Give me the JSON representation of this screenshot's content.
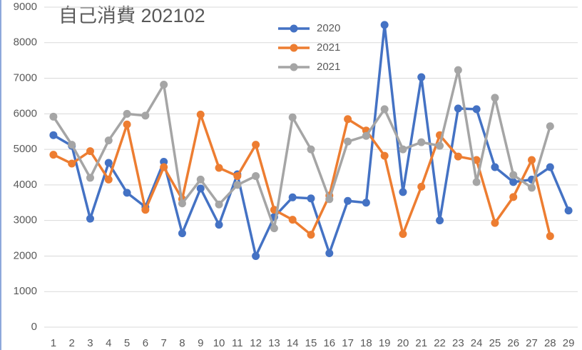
{
  "chart_data": {
    "type": "line",
    "title": "自己消費 202102",
    "categories": [
      "1",
      "2",
      "3",
      "4",
      "5",
      "6",
      "7",
      "8",
      "9",
      "10",
      "11",
      "12",
      "13",
      "14",
      "15",
      "16",
      "17",
      "18",
      "19",
      "20",
      "21",
      "22",
      "23",
      "24",
      "25",
      "26",
      "27",
      "28",
      "29"
    ],
    "series": [
      {
        "name": "2020",
        "color": "#4472c4",
        "values": [
          5400,
          5100,
          3050,
          4620,
          3780,
          3380,
          4650,
          2640,
          3900,
          2880,
          4300,
          2000,
          3100,
          3650,
          3620,
          2080,
          3550,
          3500,
          8500,
          3800,
          7030,
          3000,
          6150,
          6130,
          4500,
          4080,
          4150,
          4500,
          3280
        ]
      },
      {
        "name": "2021",
        "color": "#ed7d31",
        "values": [
          4850,
          4600,
          4950,
          4150,
          5700,
          3300,
          4500,
          3600,
          5980,
          4480,
          4250,
          5130,
          3300,
          3020,
          2600,
          3700,
          5850,
          5530,
          4820,
          2620,
          3950,
          5400,
          4800,
          4700,
          2930,
          3660,
          4700,
          2560,
          null
        ]
      },
      {
        "name": "2021",
        "color": "#a5a5a5",
        "values": [
          5920,
          5130,
          4200,
          5250,
          6000,
          5950,
          6820,
          3480,
          4150,
          3450,
          4000,
          4250,
          2780,
          5900,
          5000,
          3600,
          5220,
          5380,
          6130,
          5000,
          5200,
          5100,
          7230,
          4080,
          6450,
          4280,
          3920,
          5650,
          null
        ]
      }
    ],
    "ylim": [
      0,
      9000
    ],
    "yticks": [
      0,
      1000,
      2000,
      3000,
      4000,
      5000,
      6000,
      7000,
      8000,
      9000
    ],
    "grid": true
  }
}
